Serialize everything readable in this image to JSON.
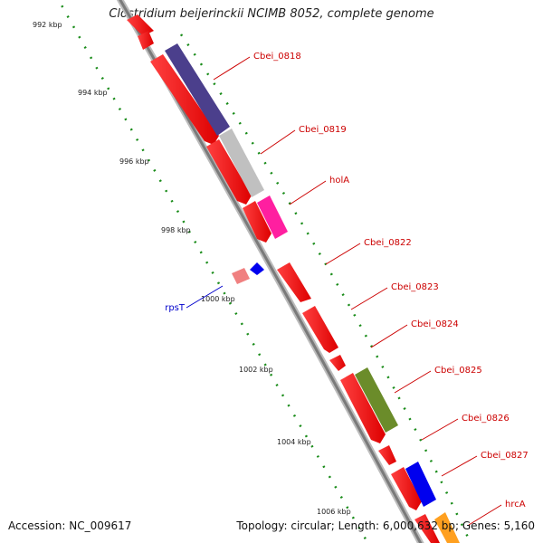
{
  "title": "Clostridium beijerinckii NCIMB 8052, complete genome",
  "footer": {
    "accession": "Accession: NC_009617",
    "stats": "Topology: circular; Length: 6,000,632 bp; Genes: 5,160"
  },
  "colors": {
    "backbone": "#8c8c8c",
    "forward_cds": "#ff0000",
    "tick_dots": "#1a8c1a",
    "label_red": "#cc0000",
    "label_blue": "#0000cc"
  },
  "ticks": [
    "992 kbp",
    "994 kbp",
    "996 kbp",
    "998 kbp",
    "1000 kbp",
    "1002 kbp",
    "1004 kbp",
    "1006 kbp"
  ],
  "labels": [
    {
      "text": "Cbei_0818",
      "color": "#cc0000"
    },
    {
      "text": "Cbei_0819",
      "color": "#cc0000"
    },
    {
      "text": "holA",
      "color": "#cc0000"
    },
    {
      "text": "Cbei_0822",
      "color": "#cc0000"
    },
    {
      "text": "Cbei_0823",
      "color": "#cc0000"
    },
    {
      "text": "Cbei_0824",
      "color": "#cc0000"
    },
    {
      "text": "Cbei_0825",
      "color": "#cc0000"
    },
    {
      "text": "Cbei_0826",
      "color": "#cc0000"
    },
    {
      "text": "Cbei_0827",
      "color": "#cc0000"
    },
    {
      "text": "hrcA",
      "color": "#cc0000"
    },
    {
      "text": "rpsT",
      "color": "#0000cc"
    }
  ],
  "cog_colors": {
    "Cbei_0818": "#4b3f8c",
    "Cbei_0819": "#c0c0c0",
    "holA": "#ff1fa0",
    "Cbei_0825": "#6b8c2a",
    "Cbei_0827": "#0000ee",
    "hrcA": "#ffa020",
    "rpsT_cog": "#0000ee",
    "rpsT_cds": "#f08080"
  }
}
